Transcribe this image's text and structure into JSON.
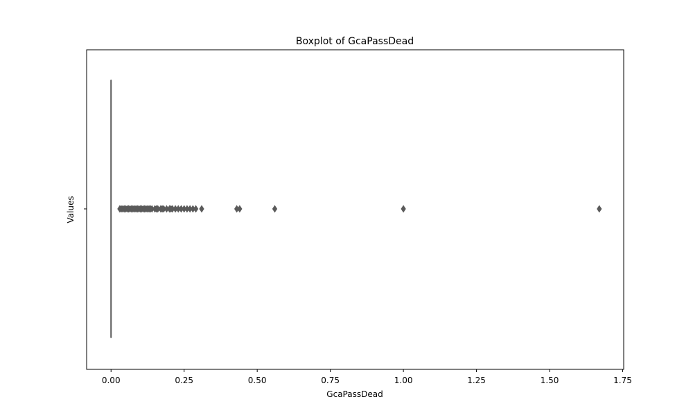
{
  "chart_data": {
    "type": "boxplot",
    "orientation": "horizontal",
    "title": "Boxplot of GcaPassDead",
    "xlabel": "GcaPassDead",
    "ylabel": "Values",
    "xlim": [
      -0.0835,
      1.7535
    ],
    "xticks": [
      0.0,
      0.25,
      0.5,
      0.75,
      1.0,
      1.25,
      1.5,
      1.75
    ],
    "xtick_labels": [
      "0.00",
      "0.25",
      "0.50",
      "0.75",
      "1.00",
      "1.25",
      "1.50",
      "1.75"
    ],
    "categories": [
      ""
    ],
    "box": {
      "min": 0.0,
      "q1": 0.0,
      "median": 0.0,
      "q3": 0.0,
      "max": 0.0
    },
    "outliers": [
      0.03,
      0.035,
      0.04,
      0.045,
      0.05,
      0.055,
      0.06,
      0.065,
      0.07,
      0.075,
      0.08,
      0.085,
      0.09,
      0.095,
      0.1,
      0.105,
      0.11,
      0.115,
      0.12,
      0.125,
      0.13,
      0.135,
      0.14,
      0.15,
      0.155,
      0.16,
      0.17,
      0.175,
      0.18,
      0.19,
      0.2,
      0.205,
      0.21,
      0.22,
      0.23,
      0.24,
      0.25,
      0.26,
      0.27,
      0.28,
      0.29,
      0.31,
      0.43,
      0.44,
      0.56,
      1.0,
      1.67
    ],
    "grid": false,
    "colors": {
      "box_line": "#5a5a5a",
      "outlier_fill": "#5a5a5a",
      "axes": "#000000"
    }
  }
}
